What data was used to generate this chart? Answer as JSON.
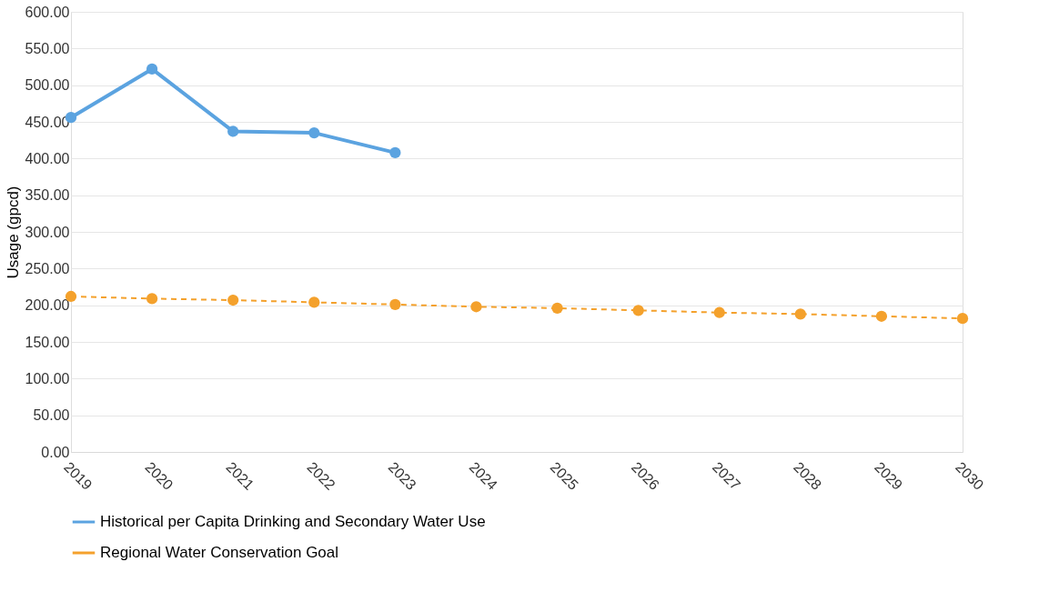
{
  "chart_data": {
    "type": "line",
    "ylabel": "Usage (gpcd)",
    "categories": [
      "2019",
      "2020",
      "2021",
      "2022",
      "2023",
      "2024",
      "2025",
      "2026",
      "2027",
      "2028",
      "2029",
      "2030"
    ],
    "series": [
      {
        "name": "Historical per Capita Drinking and Secondary Water Use",
        "color": "#5ba3e0",
        "line_style": "solid",
        "values": [
          456,
          522,
          437,
          435,
          408,
          null,
          null,
          null,
          null,
          null,
          null,
          null
        ]
      },
      {
        "name": "Regional Water Conservation Goal",
        "color": "#f4a12c",
        "line_style": "dashed",
        "values": [
          212,
          209,
          207,
          204,
          201,
          198,
          196,
          193,
          190,
          188,
          185,
          182
        ]
      }
    ],
    "ylim": [
      0,
      600
    ],
    "yticks": [
      {
        "value": 0,
        "label": "0.00"
      },
      {
        "value": 50,
        "label": "50.00"
      },
      {
        "value": 100,
        "label": "100.00"
      },
      {
        "value": 150,
        "label": "150.00"
      },
      {
        "value": 200,
        "label": "200.00"
      },
      {
        "value": 250,
        "label": "250.00"
      },
      {
        "value": 300,
        "label": "300.00"
      },
      {
        "value": 350,
        "label": "350.00"
      },
      {
        "value": 400,
        "label": "400.00"
      },
      {
        "value": 450,
        "label": "450.00"
      },
      {
        "value": 500,
        "label": "500.00"
      },
      {
        "value": 550,
        "label": "550.00"
      },
      {
        "value": 600,
        "label": "600.00"
      }
    ],
    "grid": "y",
    "legend": "bottom",
    "marker": "circle"
  }
}
